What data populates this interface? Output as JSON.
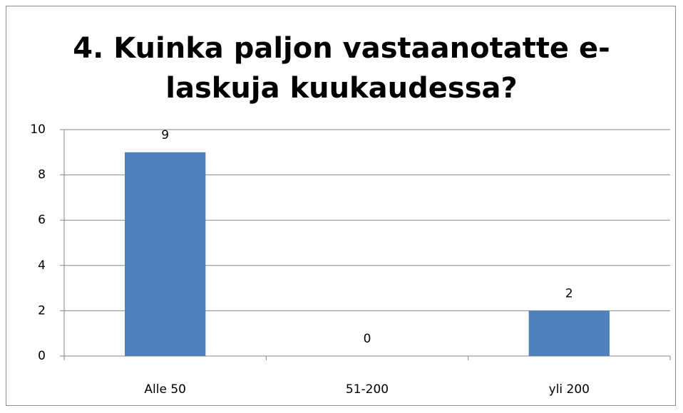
{
  "chart_data": {
    "type": "bar",
    "title": "4. Kuinka paljon vastaanotatte e-\nlaskuja kuukaudessa?",
    "categories": [
      "Alle 50",
      "51-200",
      "yli 200"
    ],
    "values": [
      9,
      0,
      2
    ],
    "color": "#4f81bd",
    "ylim": [
      0,
      10
    ],
    "yticks": [
      0,
      2,
      4,
      6,
      8,
      10
    ],
    "grid": true
  }
}
